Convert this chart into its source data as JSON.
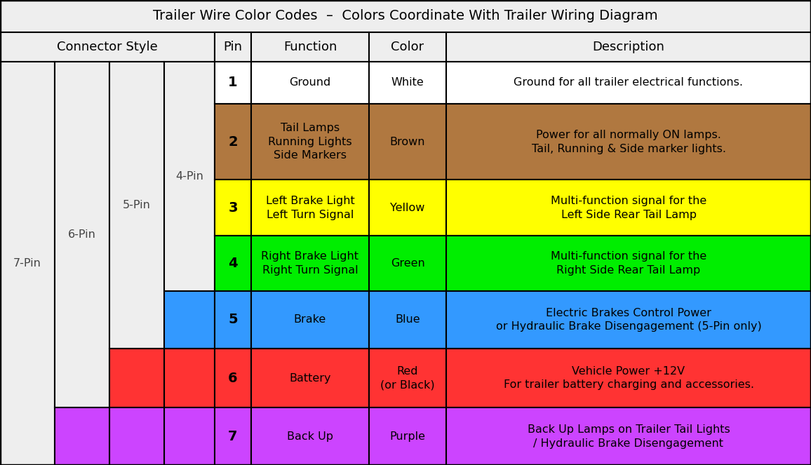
{
  "title": "Trailer Wire Color Codes  –  Colors Coordinate With Trailer Wiring Diagram",
  "rows": [
    {
      "pin": "1",
      "function": "Ground",
      "color_name": "White",
      "description": "Ground for all trailer electrical functions.",
      "row_color": "#ffffff",
      "text_color": "#000000",
      "connector_white_cols": 4
    },
    {
      "pin": "2",
      "function": "Tail Lamps\nRunning Lights\nSide Markers",
      "color_name": "Brown",
      "description": "Power for all normally ON lamps.\nTail, Running & Side marker lights.",
      "row_color": "#b07840",
      "text_color": "#000000",
      "connector_white_cols": 4
    },
    {
      "pin": "3",
      "function": "Left Brake Light\nLeft Turn Signal",
      "color_name": "Yellow",
      "description": "Multi-function signal for the\nLeft Side Rear Tail Lamp",
      "row_color": "#ffff00",
      "text_color": "#000000",
      "connector_white_cols": 4
    },
    {
      "pin": "4",
      "function": "Right Brake Light\nRight Turn Signal",
      "color_name": "Green",
      "description": "Multi-function signal for the\nRight Side Rear Tail Lamp",
      "row_color": "#00ee00",
      "text_color": "#000000",
      "connector_white_cols": 4
    },
    {
      "pin": "5",
      "function": "Brake",
      "color_name": "Blue",
      "description": "Electric Brakes Control Power\nor Hydraulic Brake Disengagement (5-Pin only)",
      "row_color": "#3399ff",
      "text_color": "#000000",
      "connector_white_cols": 2
    },
    {
      "pin": "6",
      "function": "Battery",
      "color_name": "Red\n(or Black)",
      "description": "Vehicle Power +12V\nFor trailer battery charging and accessories.",
      "row_color": "#ff3333",
      "text_color": "#000000",
      "connector_white_cols": 1
    },
    {
      "pin": "7",
      "function": "Back Up",
      "color_name": "Purple",
      "description": "Back Up Lamps on Trailer Tail Lights\n/ Hydraulic Brake Disengagement",
      "row_color": "#cc44ff",
      "text_color": "#000000",
      "connector_white_cols": 0
    }
  ],
  "header_bg": "#eeeeee",
  "connector_bg": "#eeeeee",
  "border_color": "#000000",
  "title_fontsize": 14,
  "header_fontsize": 13,
  "cell_fontsize": 11.5,
  "pin_fontsize": 14
}
